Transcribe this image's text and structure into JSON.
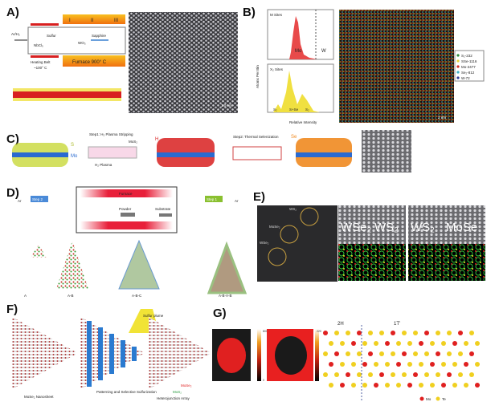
{
  "panels": {
    "A": {
      "label": "A)",
      "gas": "Ar/H₂",
      "sulfur": "Sulfur",
      "nbcl": "NbCl₅",
      "wo3": "WO₃",
      "sapphire": "Sapphire",
      "zones": [
        "I",
        "II",
        "III"
      ],
      "belt": "Heating Belt",
      "belt_temp": "~100° C",
      "furnace": "Furnace 900° C",
      "scale": "1.0 nm"
    },
    "B": {
      "label": "B)",
      "m_title": "M Sites",
      "x_title": "X₂ Sites",
      "ylabel": "Atoms Per Bin",
      "xlabel": "Relative Intensity",
      "mo": "Mo",
      "w": "W",
      "s2": "S₂",
      "sse": "S+Se",
      "se2": "S₂",
      "legend": [
        "S₂-232",
        "SSe-1116",
        "Mo-2477",
        "Se₂-812",
        "W-72"
      ],
      "legend_colors": [
        "#2e8b3a",
        "#e8d23a",
        "#d42a1e",
        "#3ab0c8",
        "#2a3a9a"
      ],
      "scale": "2 nm",
      "chart_data": [
        {
          "type": "bar",
          "title": "M Sites",
          "xlim": [
            0,
            1
          ],
          "ylim": [
            0,
            200
          ],
          "yticks": [
            0,
            50,
            100,
            150,
            200
          ],
          "xticks": [
            0,
            0.2,
            0.4,
            0.6,
            0.8,
            1.0
          ]
        },
        {
          "type": "bar",
          "title": "X₂ Sites",
          "xlim": [
            0,
            1
          ],
          "ylim": [
            0,
            120
          ],
          "yticks": [
            0,
            20,
            40,
            60,
            80,
            100,
            120
          ],
          "xticks": [
            0,
            0.2,
            0.4,
            0.6,
            0.8,
            1.0
          ]
        }
      ]
    },
    "C": {
      "label": "C)",
      "step1": "Step1: H₂ Plasma Stripping",
      "mos2": "MoS₂",
      "plasma": "H₂ Plasma",
      "step2": "Step2: Thermal Selenization",
      "h": "H",
      "se": "Se",
      "s": "S",
      "mo": "Mo"
    },
    "D": {
      "label": "D)",
      "furnace": "Furnace",
      "powder": "Powder",
      "substrate": "Substrate",
      "ar": "Ar",
      "step1": "Step 1",
      "step2": "Step 2",
      "stages": [
        "A",
        "A-B",
        "A-B-C",
        "A-B-A-B"
      ],
      "key": [
        "Mo",
        "W",
        "S",
        "Se"
      ]
    },
    "E": {
      "label": "E)",
      "ws2": "WS₂",
      "mose2": "MoSe₂",
      "wse2": "WSe₂",
      "img2": [
        "WSe₂",
        "WS₂"
      ],
      "img3": [
        "WS₂",
        "MoSe"
      ]
    },
    "F": {
      "label": "F)",
      "captions": [
        "MoSe₂ Nanosheet",
        "Patterning and Selective Sulfurization",
        "Heterojunction Array"
      ],
      "plume": "Sulfur plume",
      "mose2": "MoSe₂",
      "mos2": "MoS₂"
    },
    "G": {
      "label": "G)",
      "phase_2h": "2H",
      "phase_1t": "1T'",
      "mo": "Mo",
      "te": "Te",
      "cbar1_max": "800",
      "cbar2_max": "220",
      "cbar_min": "0"
    }
  }
}
